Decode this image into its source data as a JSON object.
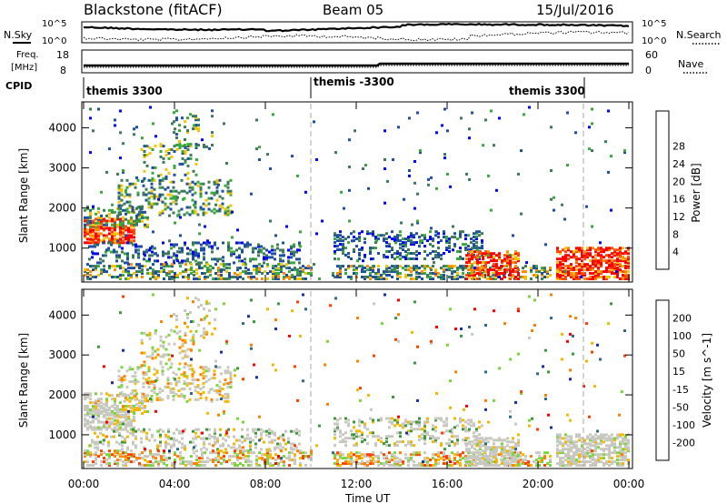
{
  "header": {
    "station": "Blackstone (fitACF)",
    "beam": "Beam 05",
    "date": "15/Jul/2016"
  },
  "top_panels": {
    "nsky_label": "N.Sky",
    "nsearch_label": "N.Search",
    "count_ticks_left": [
      "10^5",
      "10^0"
    ],
    "count_ticks_right": [
      "10^5",
      "10^0"
    ],
    "freq_label": "Freq.",
    "freq_unit": "[MHz]",
    "freq_ticks": [
      "18",
      "8"
    ],
    "nave_label": "Nave",
    "nave_ticks": [
      "60",
      "0"
    ],
    "cpid_label": "CPID",
    "cpid_segments": [
      "themis 3300",
      "themis -3300",
      "themis 3300"
    ]
  },
  "colors": {
    "power": [
      "#0000ff",
      "#1f4fa0",
      "#3c7a5a",
      "#3aa83a",
      "#7fd62e",
      "#f5c400",
      "#ff8c00",
      "#ff4a00",
      "#ff0000"
    ],
    "velocity": [
      "#1a2ea0",
      "#2e6b8a",
      "#3c9a3c",
      "#7ad63c",
      "#c8c8c0",
      "#f5b800",
      "#ff8000",
      "#ff4000",
      "#ff0000"
    ]
  },
  "chart_data": [
    {
      "type": "heatmap",
      "name": "power",
      "ylabel": "Slant Range [km]",
      "yticks": [
        1000,
        2000,
        3000,
        4000
      ],
      "ylim": [
        200,
        4600
      ],
      "xlim": [
        0,
        24
      ],
      "colorbar_label": "Power [dB]",
      "colorbar_ticks": [
        4,
        8,
        12,
        16,
        20,
        24,
        28
      ],
      "colorbar_range": [
        0,
        32
      ],
      "dashed_lines_hours": [
        10,
        22
      ]
    },
    {
      "type": "heatmap",
      "name": "velocity",
      "ylabel": "Slant Range [km]",
      "yticks": [
        1000,
        2000,
        3000,
        4000
      ],
      "ylim": [
        200,
        4600
      ],
      "xlim": [
        0,
        24
      ],
      "xticks": [
        "00:00",
        "04:00",
        "08:00",
        "12:00",
        "16:00",
        "20:00",
        "00:00"
      ],
      "xlabel": "Time UT",
      "colorbar_label": "Velocity [m s^-1]",
      "colorbar_ticks": [
        200,
        100,
        50,
        15,
        -15,
        -50,
        -100,
        -200
      ],
      "dashed_lines_hours": [
        10,
        22
      ]
    }
  ]
}
